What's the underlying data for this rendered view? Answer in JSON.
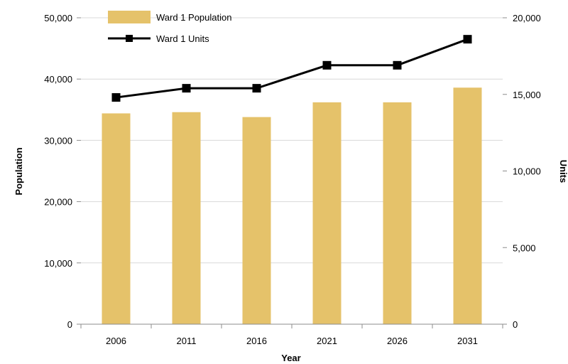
{
  "chart_data": {
    "type": "bar",
    "categories": [
      "2006",
      "2011",
      "2016",
      "2021",
      "2026",
      "2031"
    ],
    "series": [
      {
        "name": "Ward 1 Population",
        "type": "bar",
        "axis": "left",
        "values": [
          34400,
          34600,
          33800,
          36200,
          36200,
          38600
        ]
      },
      {
        "name": "Ward 1 Units",
        "type": "line",
        "axis": "right",
        "values": [
          14800,
          15400,
          15400,
          16900,
          16900,
          18600
        ]
      }
    ],
    "xlabel": "Year",
    "ylabel": "Population",
    "y2label": "Units",
    "ylim": [
      0,
      50000
    ],
    "y2lim": [
      0,
      20000
    ],
    "yticks": [
      "0",
      "10,000",
      "20,000",
      "30,000",
      "40,000",
      "50,000"
    ],
    "y2ticks": [
      "0",
      "5,000",
      "10,000",
      "15,000",
      "20,000"
    ],
    "grid": true,
    "legend": "top-left",
    "colors": {
      "bar": "#e5c26a",
      "line": "#000000",
      "grid": "#d9d9d9"
    }
  }
}
